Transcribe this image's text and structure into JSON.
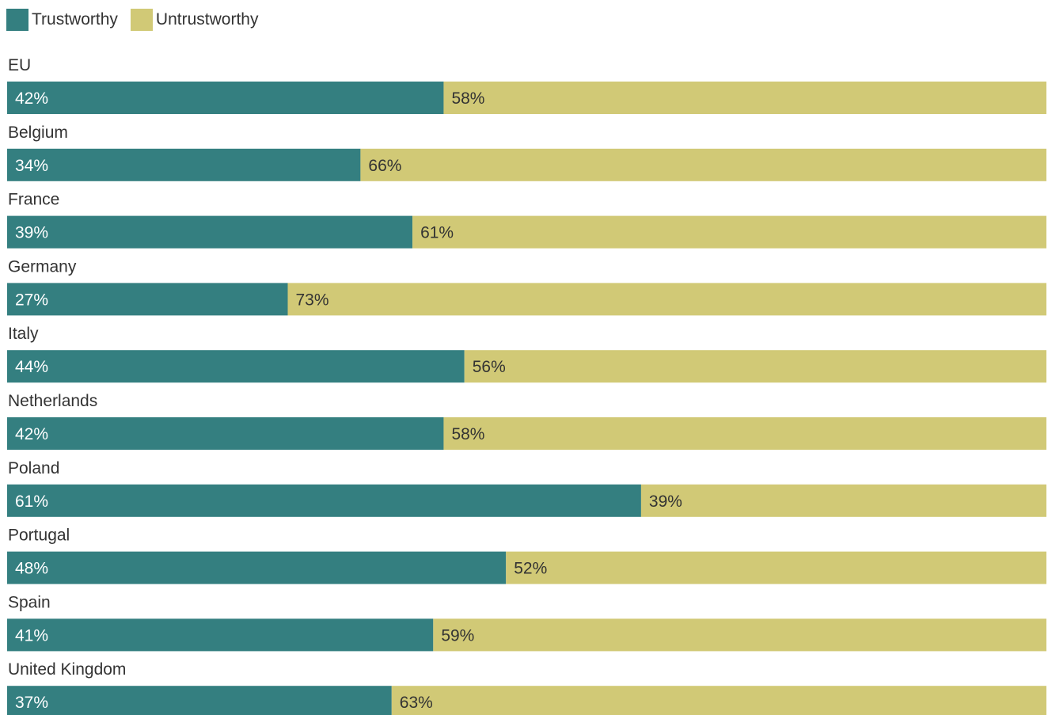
{
  "colors": {
    "trustworthy": "#347f80",
    "untrustworthy": "#d1c976"
  },
  "chart_data": {
    "type": "bar",
    "orientation": "horizontal",
    "stacked": "100%",
    "legend_position": "top-left",
    "categories": [
      "EU",
      "Belgium",
      "France",
      "Germany",
      "Italy",
      "Netherlands",
      "Poland",
      "Portugal",
      "Spain",
      "United Kingdom"
    ],
    "series": [
      {
        "name": "Trustworthy",
        "color": "#347f80",
        "values": [
          42,
          34,
          39,
          27,
          44,
          42,
          61,
          48,
          41,
          37
        ],
        "labels": [
          "42%",
          "34%",
          "39%",
          "27%",
          "44%",
          "42%",
          "61%",
          "48%",
          "41%",
          "37%"
        ]
      },
      {
        "name": "Untrustworthy",
        "color": "#d1c976",
        "values": [
          58,
          66,
          61,
          73,
          56,
          58,
          39,
          52,
          59,
          63
        ],
        "labels": [
          "58%",
          "66%",
          "61%",
          "73%",
          "56%",
          "58%",
          "39%",
          "52%",
          "59%",
          "63%"
        ]
      }
    ],
    "xlim": [
      0,
      100
    ]
  }
}
